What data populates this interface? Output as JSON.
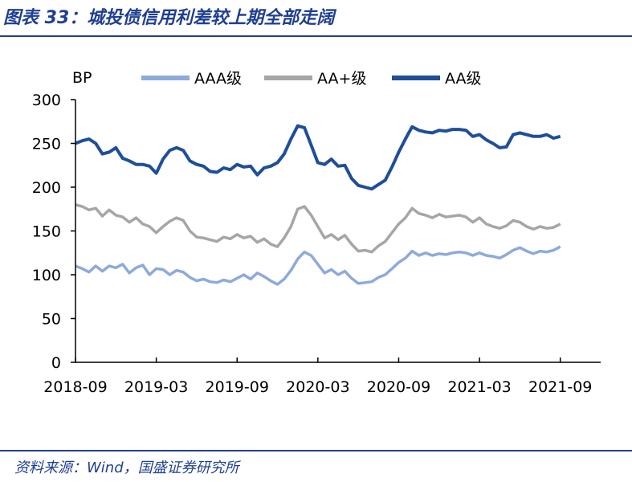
{
  "header": {
    "title": "图表 33：城投债信用利差较上期全部走阔"
  },
  "footer": {
    "source": "资料来源：Wind，国盛证券研究所"
  },
  "colors": {
    "AAA": "#8eaadb",
    "AA_plus": "#a6a6a6",
    "AA": "#1f4e9a",
    "rule": "#1f3f93"
  },
  "chart_data": {
    "type": "line",
    "ylabel": "BP",
    "ylim": [
      0,
      300
    ],
    "yticks": [
      "0",
      "50",
      "100",
      "150",
      "200",
      "250",
      "300"
    ],
    "xticks": [
      "2018-09",
      "2019-03",
      "2019-09",
      "2020-03",
      "2020-09",
      "2021-03",
      "2021-09"
    ],
    "xstart": "2018-09",
    "xend": "2021-12",
    "legend_position": "top",
    "grid": false,
    "series": [
      {
        "name": "AAA级",
        "color": "#8eaadb",
        "points": [
          [
            0,
            110
          ],
          [
            0.5,
            107
          ],
          [
            1,
            103
          ],
          [
            1.5,
            110
          ],
          [
            2,
            104
          ],
          [
            2.5,
            110
          ],
          [
            3,
            108
          ],
          [
            3.5,
            112
          ],
          [
            4,
            102
          ],
          [
            4.5,
            108
          ],
          [
            5,
            111
          ],
          [
            5.5,
            100
          ],
          [
            6,
            107
          ],
          [
            6.5,
            106
          ],
          [
            7,
            100
          ],
          [
            7.5,
            105
          ],
          [
            8,
            103
          ],
          [
            8.5,
            97
          ],
          [
            9,
            93
          ],
          [
            9.5,
            95
          ],
          [
            10,
            92
          ],
          [
            10.5,
            91
          ],
          [
            11,
            94
          ],
          [
            11.5,
            92
          ],
          [
            12,
            96
          ],
          [
            12.5,
            100
          ],
          [
            13,
            95
          ],
          [
            13.5,
            102
          ],
          [
            14,
            98
          ],
          [
            14.5,
            93
          ],
          [
            15,
            89
          ],
          [
            15.5,
            95
          ],
          [
            16,
            105
          ],
          [
            16.5,
            118
          ],
          [
            17,
            126
          ],
          [
            17.5,
            122
          ],
          [
            18,
            112
          ],
          [
            18.5,
            102
          ],
          [
            19,
            106
          ],
          [
            19.5,
            100
          ],
          [
            20,
            104
          ],
          [
            20.5,
            96
          ],
          [
            21,
            90
          ],
          [
            21.5,
            91
          ],
          [
            22,
            92
          ],
          [
            22.5,
            97
          ],
          [
            23,
            100
          ],
          [
            23.5,
            107
          ],
          [
            24,
            114
          ],
          [
            24.5,
            119
          ],
          [
            25,
            127
          ],
          [
            25.5,
            122
          ],
          [
            26,
            125
          ],
          [
            26.5,
            122
          ],
          [
            27,
            124
          ],
          [
            27.5,
            123
          ],
          [
            28,
            125
          ],
          [
            28.5,
            126
          ],
          [
            29,
            125
          ],
          [
            29.5,
            122
          ],
          [
            30,
            125
          ],
          [
            30.5,
            122
          ],
          [
            31,
            121
          ],
          [
            31.5,
            119
          ],
          [
            32,
            123
          ],
          [
            32.5,
            128
          ],
          [
            33,
            131
          ],
          [
            33.5,
            127
          ],
          [
            34,
            124
          ],
          [
            34.5,
            127
          ],
          [
            35,
            126
          ],
          [
            35.5,
            128
          ],
          [
            36,
            132
          ]
        ]
      },
      {
        "name": "AA+级",
        "color": "#a6a6a6",
        "points": [
          [
            0,
            180
          ],
          [
            0.5,
            178
          ],
          [
            1,
            174
          ],
          [
            1.5,
            176
          ],
          [
            2,
            167
          ],
          [
            2.5,
            174
          ],
          [
            3,
            168
          ],
          [
            3.5,
            166
          ],
          [
            4,
            160
          ],
          [
            4.5,
            165
          ],
          [
            5,
            158
          ],
          [
            5.5,
            155
          ],
          [
            6,
            148
          ],
          [
            6.5,
            155
          ],
          [
            7,
            161
          ],
          [
            7.5,
            165
          ],
          [
            8,
            162
          ],
          [
            8.5,
            150
          ],
          [
            9,
            143
          ],
          [
            9.5,
            142
          ],
          [
            10,
            140
          ],
          [
            10.5,
            138
          ],
          [
            11,
            143
          ],
          [
            11.5,
            141
          ],
          [
            12,
            146
          ],
          [
            12.5,
            142
          ],
          [
            13,
            144
          ],
          [
            13.5,
            137
          ],
          [
            14,
            141
          ],
          [
            14.5,
            135
          ],
          [
            15,
            132
          ],
          [
            15.5,
            142
          ],
          [
            16,
            155
          ],
          [
            16.5,
            175
          ],
          [
            17,
            178
          ],
          [
            17.5,
            168
          ],
          [
            18,
            155
          ],
          [
            18.5,
            142
          ],
          [
            19,
            146
          ],
          [
            19.5,
            140
          ],
          [
            20,
            145
          ],
          [
            20.5,
            135
          ],
          [
            21,
            127
          ],
          [
            21.5,
            128
          ],
          [
            22,
            126
          ],
          [
            22.5,
            133
          ],
          [
            23,
            138
          ],
          [
            23.5,
            148
          ],
          [
            24,
            158
          ],
          [
            24.5,
            165
          ],
          [
            25,
            176
          ],
          [
            25.5,
            170
          ],
          [
            26,
            168
          ],
          [
            26.5,
            165
          ],
          [
            27,
            169
          ],
          [
            27.5,
            166
          ],
          [
            28,
            167
          ],
          [
            28.5,
            168
          ],
          [
            29,
            166
          ],
          [
            29.5,
            160
          ],
          [
            30,
            165
          ],
          [
            30.5,
            158
          ],
          [
            31,
            155
          ],
          [
            31.5,
            153
          ],
          [
            32,
            156
          ],
          [
            32.5,
            162
          ],
          [
            33,
            160
          ],
          [
            33.5,
            155
          ],
          [
            34,
            152
          ],
          [
            34.5,
            155
          ],
          [
            35,
            153
          ],
          [
            35.5,
            154
          ],
          [
            36,
            158
          ]
        ]
      },
      {
        "name": "AA级",
        "color": "#1f4e9a",
        "points": [
          [
            0,
            250
          ],
          [
            0.5,
            253
          ],
          [
            1,
            255
          ],
          [
            1.5,
            250
          ],
          [
            2,
            238
          ],
          [
            2.5,
            240
          ],
          [
            3,
            245
          ],
          [
            3.5,
            233
          ],
          [
            4,
            230
          ],
          [
            4.5,
            226
          ],
          [
            5,
            226
          ],
          [
            5.5,
            224
          ],
          [
            6,
            216
          ],
          [
            6.5,
            232
          ],
          [
            7,
            242
          ],
          [
            7.5,
            245
          ],
          [
            8,
            242
          ],
          [
            8.5,
            230
          ],
          [
            9,
            226
          ],
          [
            9.5,
            224
          ],
          [
            10,
            218
          ],
          [
            10.5,
            217
          ],
          [
            11,
            222
          ],
          [
            11.5,
            220
          ],
          [
            12,
            226
          ],
          [
            12.5,
            223
          ],
          [
            13,
            224
          ],
          [
            13.5,
            214
          ],
          [
            14,
            222
          ],
          [
            14.5,
            224
          ],
          [
            15,
            228
          ],
          [
            15.5,
            238
          ],
          [
            16,
            255
          ],
          [
            16.5,
            270
          ],
          [
            17,
            268
          ],
          [
            17.5,
            248
          ],
          [
            18,
            228
          ],
          [
            18.5,
            226
          ],
          [
            19,
            232
          ],
          [
            19.5,
            224
          ],
          [
            20,
            225
          ],
          [
            20.5,
            210
          ],
          [
            21,
            202
          ],
          [
            21.5,
            200
          ],
          [
            22,
            198
          ],
          [
            22.5,
            203
          ],
          [
            23,
            208
          ],
          [
            23.5,
            223
          ],
          [
            24,
            240
          ],
          [
            24.5,
            255
          ],
          [
            25,
            269
          ],
          [
            25.5,
            265
          ],
          [
            26,
            263
          ],
          [
            26.5,
            262
          ],
          [
            27,
            265
          ],
          [
            27.5,
            264
          ],
          [
            28,
            266
          ],
          [
            28.5,
            266
          ],
          [
            29,
            265
          ],
          [
            29.5,
            258
          ],
          [
            30,
            260
          ],
          [
            30.5,
            254
          ],
          [
            31,
            250
          ],
          [
            31.5,
            245
          ],
          [
            32,
            246
          ],
          [
            32.5,
            260
          ],
          [
            33,
            262
          ],
          [
            33.5,
            260
          ],
          [
            34,
            258
          ],
          [
            34.5,
            258
          ],
          [
            35,
            260
          ],
          [
            35.5,
            256
          ],
          [
            36,
            258
          ]
        ]
      }
    ]
  }
}
